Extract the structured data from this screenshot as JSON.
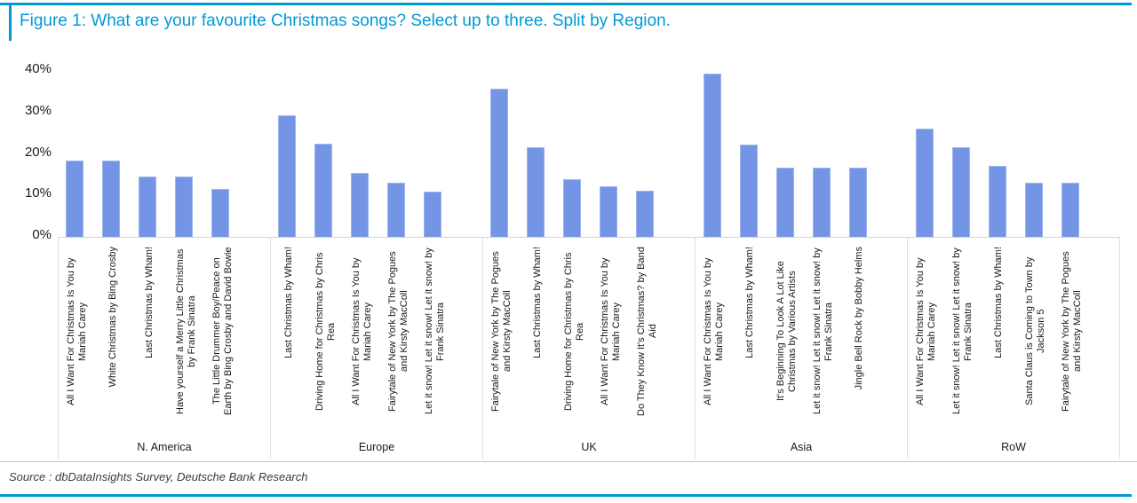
{
  "title": "Figure 1: What are your favourite Christmas songs? Select up to three. Split by Region.",
  "source": "Source : dbDataInsights Survey, Deutsche Bank Research",
  "colors": {
    "accent": "#0099d8",
    "bar": "#7494e6",
    "axis_line": "#d4d4d4",
    "separator": "#e2e2e2"
  },
  "chart_data": {
    "type": "bar",
    "title": "What are your favourite Christmas songs? Select up to three. Split by Region.",
    "xlabel": "",
    "ylabel": "",
    "ylim": [
      0,
      40
    ],
    "grid": false,
    "legend": "none",
    "yticks": [
      "0%",
      "10%",
      "20%",
      "30%",
      "40%"
    ],
    "groups": [
      {
        "region": "N. America",
        "items": [
          {
            "label": "All I Want For Christmas Is You by Mariah Carey",
            "value": 18.3
          },
          {
            "label": "White Christmas by Bing Crosby",
            "value": 18.3
          },
          {
            "label": "Last Christmas by Wham!",
            "value": 14.5
          },
          {
            "label": "Have yourself a Merry Little Christmas by Frank Sinatra",
            "value": 14.5
          },
          {
            "label": "The Little Drummer Boy/Peace on Earth by Bing Crosby and David Bowie",
            "value": 11.5
          }
        ]
      },
      {
        "region": "Europe",
        "items": [
          {
            "label": "Last Christmas by Wham!",
            "value": 29.2
          },
          {
            "label": "Driving Home for Christmas by Chris Rea",
            "value": 22.5
          },
          {
            "label": "All I Want For Christmas Is You by Mariah Carey",
            "value": 15.3
          },
          {
            "label": "Fairytale of New York by The Pogues and Kirsty MacColl",
            "value": 13.0
          },
          {
            "label": "Let it snow! Let it snow! Let it snow! by Frank Sinatra",
            "value": 11.0
          }
        ]
      },
      {
        "region": "UK",
        "items": [
          {
            "label": "Fairytale of New York by The Pogues and Kirsty MacColl",
            "value": 35.8
          },
          {
            "label": "Last Christmas by Wham!",
            "value": 21.5
          },
          {
            "label": "Driving Home for Christmas by Chris Rea",
            "value": 14.0
          },
          {
            "label": "All I Want For Christmas Is You by Mariah Carey",
            "value": 12.2
          },
          {
            "label": "Do They Know It's Christmas? by Band Aid",
            "value": 11.2
          }
        ]
      },
      {
        "region": "Asia",
        "items": [
          {
            "label": "All I Want For Christmas Is You by Mariah Carey",
            "value": 39.3
          },
          {
            "label": "Last Christmas by Wham!",
            "value": 22.2
          },
          {
            "label": "It's Beginning To Look A Lot Like Christmas by Various Artists",
            "value": 16.6
          },
          {
            "label": "Let it snow! Let it snow! Let it snow! by Frank Sinatra",
            "value": 16.6
          },
          {
            "label": "Jingle Bell Rock by Bobby Helms",
            "value": 16.6
          }
        ]
      },
      {
        "region": "RoW",
        "items": [
          {
            "label": "All I Want For Christmas Is You by Mariah Carey",
            "value": 26.1
          },
          {
            "label": "Let it snow! Let it snow! Let it snow! by Frank Sinatra",
            "value": 21.6
          },
          {
            "label": "Last Christmas by Wham!",
            "value": 17.2
          },
          {
            "label": "Santa Claus is Coming to Town by Jackson 5",
            "value": 13.0
          },
          {
            "label": "Fairytale of New York by The Pogues and Kirsty MacColl",
            "value": 13.0
          }
        ]
      }
    ]
  }
}
